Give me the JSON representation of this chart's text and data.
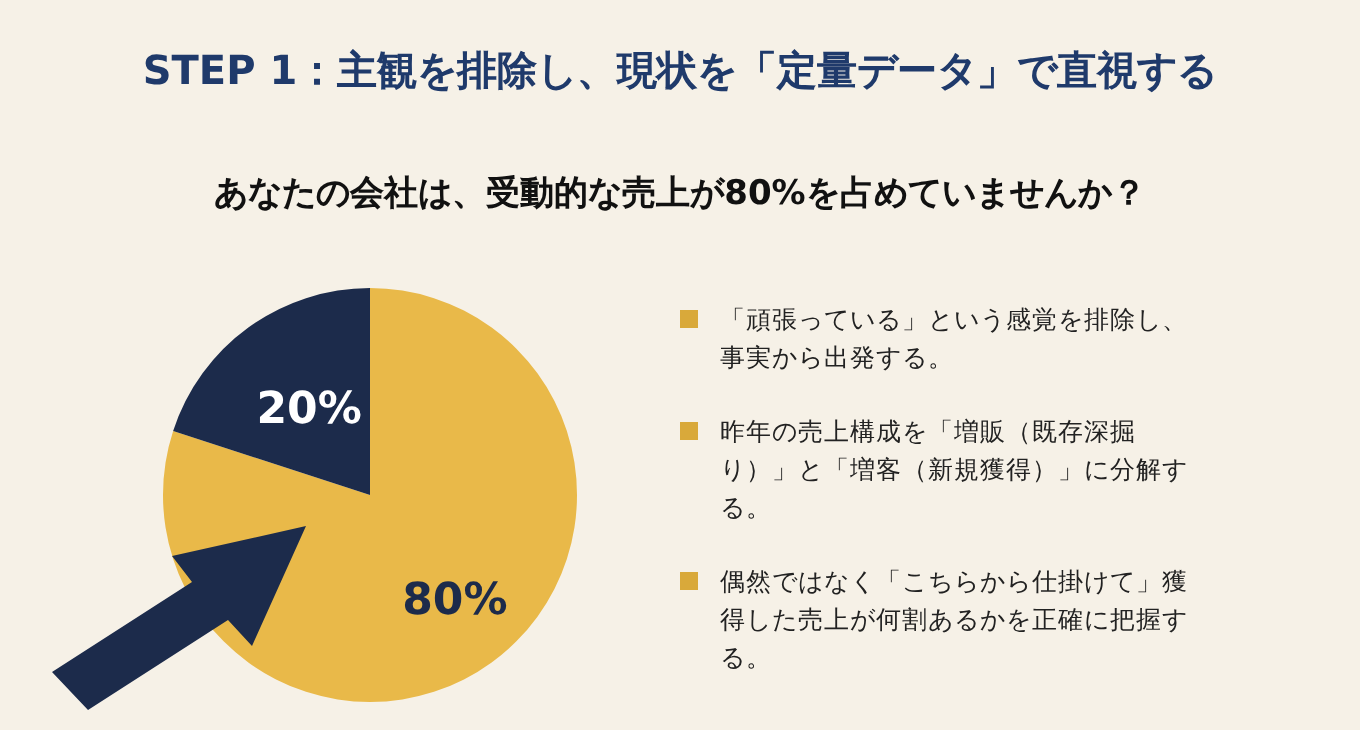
{
  "chart_data": {
    "type": "pie",
    "title": "STEP 1：主観を排除し、現状を「定量データ」で直視する",
    "subtitle": "あなたの会社は、受動的な売上が80%を占めていませんか？",
    "categories": [
      null,
      null
    ],
    "values": [
      80,
      20
    ],
    "colors": [
      "#e9b949",
      "#1c2b4b"
    ],
    "value_labels": [
      "80%",
      "20%"
    ],
    "annotations": [
      "「頑張っている」という感覚を排除し、事実から出発する。",
      "昨年の売上構成を「増販（既存深掘り）」と「増客（新規獲得）」に分解する。",
      "偶然ではなく「こちらから仕掛けて」獲得した売上が何割あるかを正確に把握する。"
    ]
  }
}
